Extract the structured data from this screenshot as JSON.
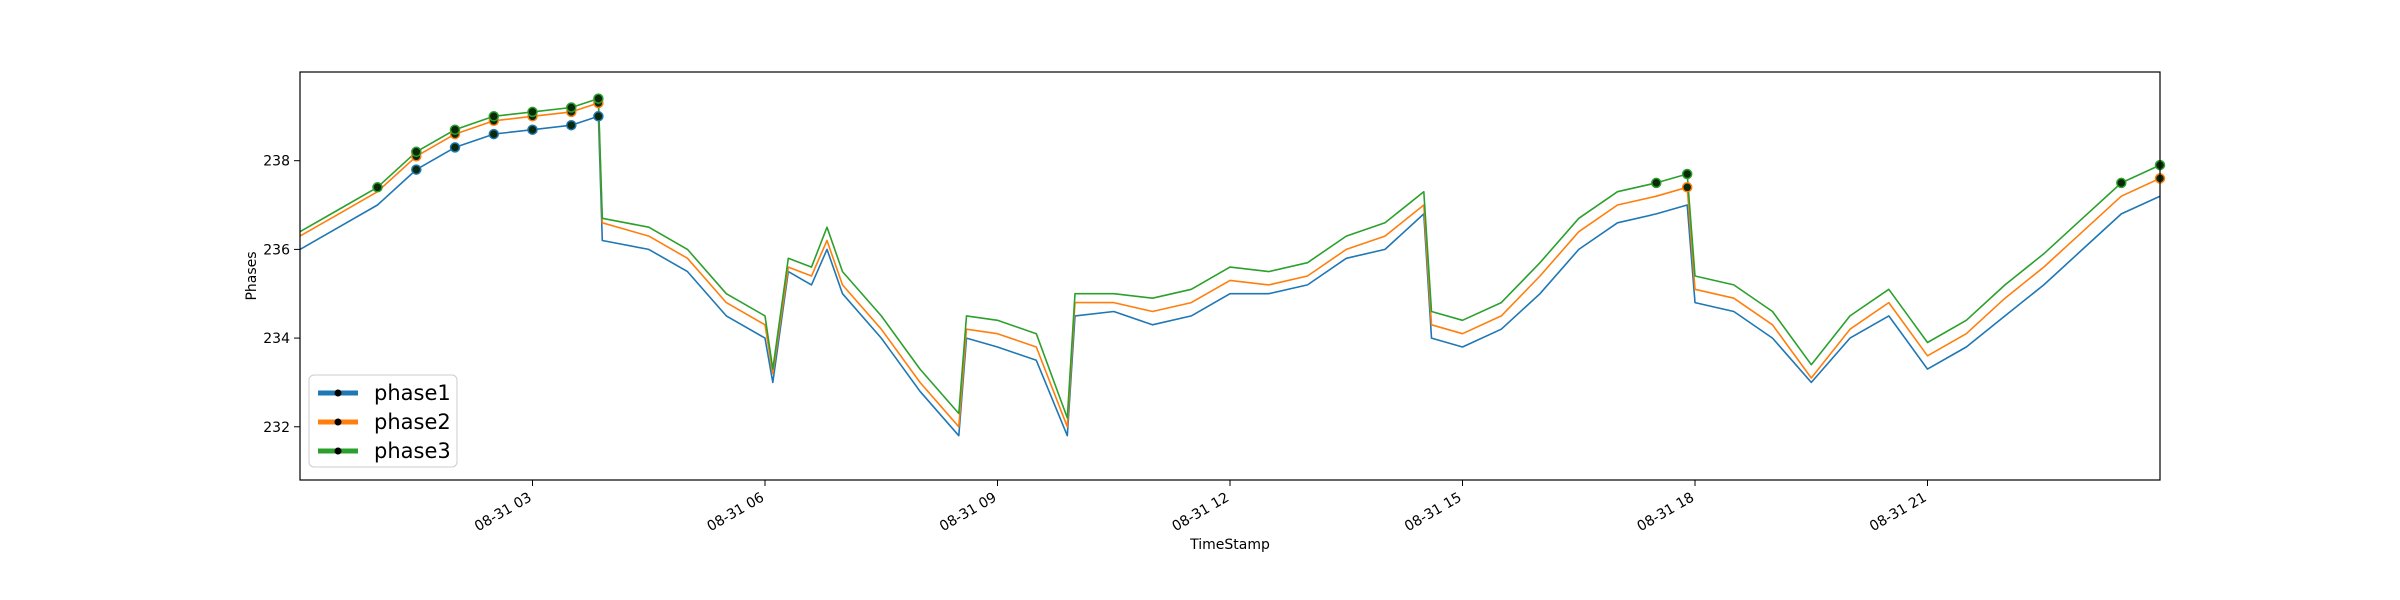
{
  "chart_data": {
    "type": "line",
    "xlabel": "TimeStamp",
    "ylabel": "Phases",
    "xlim_hours": [
      0.0,
      24.0
    ],
    "ylim": [
      230.8,
      240.0
    ],
    "x_ticks": [
      {
        "hour": 3,
        "label": "08-31 03"
      },
      {
        "hour": 6,
        "label": "08-31 06"
      },
      {
        "hour": 9,
        "label": "08-31 09"
      },
      {
        "hour": 12,
        "label": "08-31 12"
      },
      {
        "hour": 15,
        "label": "08-31 15"
      },
      {
        "hour": 18,
        "label": "08-31 18"
      },
      {
        "hour": 21,
        "label": "08-31 21"
      }
    ],
    "y_ticks": [
      232,
      234,
      236,
      238
    ],
    "grid": false,
    "legend_position": "lower-left",
    "marker_threshold": 237.4,
    "x": [
      0.0,
      0.5,
      1.0,
      1.5,
      2.0,
      2.5,
      3.0,
      3.5,
      3.85,
      3.9,
      4.5,
      5.0,
      5.5,
      6.0,
      6.1,
      6.3,
      6.6,
      6.8,
      7.0,
      7.5,
      8.0,
      8.5,
      8.6,
      9.0,
      9.5,
      9.9,
      10.0,
      10.5,
      11.0,
      11.5,
      12.0,
      12.5,
      13.0,
      13.5,
      14.0,
      14.5,
      14.6,
      15.0,
      15.5,
      16.0,
      16.5,
      17.0,
      17.5,
      17.9,
      18.0,
      18.5,
      19.0,
      19.5,
      20.0,
      20.5,
      21.0,
      21.5,
      22.0,
      22.5,
      23.0,
      23.5,
      24.0
    ],
    "series": [
      {
        "name": "phase1",
        "color": "#1f77b4",
        "values": [
          236.0,
          236.5,
          237.0,
          237.8,
          238.3,
          238.6,
          238.7,
          238.8,
          239.0,
          236.2,
          236.0,
          235.5,
          234.5,
          234.0,
          233.0,
          235.5,
          235.2,
          236.0,
          235.0,
          234.0,
          232.8,
          231.8,
          234.0,
          233.8,
          233.5,
          231.8,
          234.5,
          234.6,
          234.3,
          234.5,
          235.0,
          235.0,
          235.2,
          235.8,
          236.0,
          236.8,
          234.0,
          233.8,
          234.2,
          235.0,
          236.0,
          236.6,
          236.8,
          237.0,
          234.8,
          234.6,
          234.0,
          233.0,
          234.0,
          234.5,
          233.3,
          233.8,
          234.5,
          235.2,
          236.0,
          236.8,
          237.2
        ]
      },
      {
        "name": "phase2",
        "color": "#ff7f0e",
        "values": [
          236.3,
          236.8,
          237.3,
          238.1,
          238.6,
          238.9,
          239.0,
          239.1,
          239.3,
          236.6,
          236.3,
          235.8,
          234.8,
          234.3,
          233.2,
          235.6,
          235.4,
          236.2,
          235.2,
          234.2,
          233.0,
          232.0,
          234.2,
          234.1,
          233.8,
          232.0,
          234.8,
          234.8,
          234.6,
          234.8,
          235.3,
          235.2,
          235.4,
          236.0,
          236.3,
          237.0,
          234.3,
          234.1,
          234.5,
          235.4,
          236.4,
          237.0,
          237.2,
          237.4,
          235.1,
          234.9,
          234.3,
          233.1,
          234.2,
          234.8,
          233.6,
          234.1,
          234.9,
          235.6,
          236.4,
          237.2,
          237.6
        ]
      },
      {
        "name": "phase3",
        "color": "#2ca02c",
        "values": [
          236.4,
          236.9,
          237.4,
          238.2,
          238.7,
          239.0,
          239.1,
          239.2,
          239.4,
          236.7,
          236.5,
          236.0,
          235.0,
          234.5,
          233.3,
          235.8,
          235.6,
          236.5,
          235.5,
          234.5,
          233.3,
          232.3,
          234.5,
          234.4,
          234.1,
          232.2,
          235.0,
          235.0,
          234.9,
          235.1,
          235.6,
          235.5,
          235.7,
          236.3,
          236.6,
          237.3,
          234.6,
          234.4,
          234.8,
          235.7,
          236.7,
          237.3,
          237.5,
          237.7,
          235.4,
          235.2,
          234.6,
          233.4,
          234.5,
          235.1,
          233.9,
          234.4,
          235.2,
          235.9,
          236.7,
          237.5,
          237.9
        ]
      }
    ]
  }
}
